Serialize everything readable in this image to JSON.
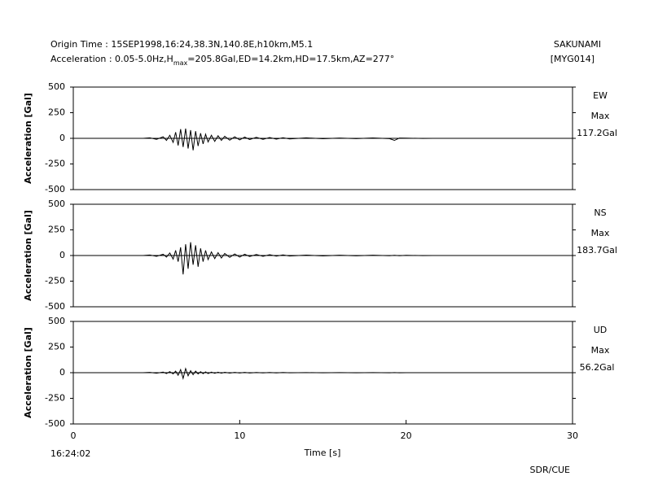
{
  "header": {
    "origin": "Origin Time : 15SEP1998,16:24,38.3N,140.8E,h10km,M5.1",
    "accel_prefix": "Acceleration : 0.05-5.0Hz,H",
    "accel_sub": "max",
    "accel_suffix": "=205.8Gal,ED=14.2km,HD=17.5km,AZ=277°",
    "station": "SAKUNAMI",
    "code": "[MYG014]"
  },
  "footer": {
    "start_time": "16:24:02",
    "credit": "SDR/CUE"
  },
  "chart_data": [
    {
      "type": "line",
      "y_label": "Acceleration [Gal]",
      "component": "EW",
      "max_label": "Max",
      "max_value": "117.2Gal",
      "xlim": [
        0,
        30
      ],
      "ylim": [
        -500,
        500
      ],
      "yticks": [
        -500,
        -250,
        0,
        250,
        500
      ],
      "zero_line": true,
      "color": "#000000",
      "x": [
        4.2,
        4.6,
        5.0,
        5.4,
        5.6,
        5.8,
        6.0,
        6.15,
        6.3,
        6.45,
        6.6,
        6.75,
        6.9,
        7.05,
        7.2,
        7.35,
        7.5,
        7.65,
        7.8,
        7.95,
        8.1,
        8.3,
        8.5,
        8.7,
        8.9,
        9.1,
        9.4,
        9.7,
        10.0,
        10.3,
        10.6,
        11.0,
        11.4,
        11.8,
        12.2,
        12.6,
        13.0,
        14,
        15,
        16,
        17,
        18,
        19,
        19.3,
        19.6,
        20,
        21,
        21.6
      ],
      "values": [
        0,
        5,
        -10,
        15,
        -20,
        30,
        -40,
        60,
        -70,
        90,
        -85,
        95,
        -100,
        80,
        -117,
        70,
        -75,
        50,
        -55,
        40,
        -35,
        30,
        -30,
        25,
        -20,
        20,
        -18,
        15,
        -15,
        12,
        -12,
        10,
        -10,
        8,
        -8,
        6,
        -6,
        5,
        -4,
        3,
        -3,
        4,
        -3,
        -20,
        3,
        2,
        -1,
        0
      ]
    },
    {
      "type": "line",
      "y_label": "Acceleration [Gal]",
      "component": "NS",
      "max_label": "Max",
      "max_value": "183.7Gal",
      "xlim": [
        0,
        30
      ],
      "ylim": [
        -500,
        500
      ],
      "yticks": [
        -500,
        -250,
        0,
        250,
        500
      ],
      "zero_line": true,
      "color": "#000000",
      "x": [
        4.2,
        4.6,
        5.0,
        5.4,
        5.6,
        5.8,
        6.0,
        6.15,
        6.3,
        6.45,
        6.6,
        6.75,
        6.9,
        7.05,
        7.2,
        7.35,
        7.5,
        7.65,
        7.8,
        7.95,
        8.1,
        8.3,
        8.5,
        8.7,
        8.9,
        9.1,
        9.4,
        9.7,
        10.0,
        10.3,
        10.6,
        11.0,
        11.4,
        11.8,
        12.2,
        12.6,
        13.0,
        14,
        15,
        16,
        17,
        18,
        19,
        19.3,
        19.6,
        20,
        21,
        21.6
      ],
      "values": [
        0,
        5,
        -8,
        12,
        -15,
        25,
        -35,
        50,
        -60,
        80,
        -184,
        110,
        -130,
        130,
        -90,
        100,
        -110,
        70,
        -60,
        50,
        -40,
        35,
        -30,
        28,
        -25,
        20,
        -18,
        15,
        -15,
        12,
        -10,
        10,
        -8,
        8,
        -6,
        6,
        -5,
        4,
        -4,
        3,
        -3,
        3,
        -2,
        2,
        -2,
        2,
        -1,
        0
      ]
    },
    {
      "type": "line",
      "y_label": "Acceleration [Gal]",
      "component": "UD",
      "max_label": "Max",
      "max_value": "56.2Gal",
      "xlim": [
        0,
        30
      ],
      "ylim": [
        -500,
        500
      ],
      "yticks": [
        -500,
        -250,
        0,
        250,
        500
      ],
      "zero_line": true,
      "color": "#000000",
      "xticks": [
        0,
        10,
        20,
        30
      ],
      "x_label": "Time [s]",
      "x": [
        4.2,
        4.6,
        5.0,
        5.4,
        5.6,
        5.8,
        6.0,
        6.15,
        6.3,
        6.45,
        6.6,
        6.75,
        6.9,
        7.05,
        7.2,
        7.35,
        7.5,
        7.65,
        7.8,
        7.95,
        8.1,
        8.3,
        8.5,
        8.7,
        8.9,
        9.1,
        9.4,
        9.7,
        10.0,
        10.3,
        10.6,
        11.0,
        11.4,
        11.8,
        12.2,
        12.6,
        13.0,
        14,
        15,
        16,
        17,
        18,
        19,
        19.3,
        19.6,
        20,
        21,
        21.6
      ],
      "values": [
        0,
        3,
        -5,
        6,
        -8,
        10,
        -12,
        15,
        -25,
        30,
        -56,
        40,
        -30,
        20,
        -20,
        15,
        -12,
        10,
        -10,
        8,
        -8,
        6,
        -6,
        5,
        -5,
        4,
        -4,
        3,
        -3,
        3,
        -3,
        2,
        -2,
        2,
        -2,
        2,
        -1,
        1,
        -1,
        1,
        -1,
        1,
        -1,
        1,
        -1,
        0,
        0,
        0
      ]
    }
  ]
}
